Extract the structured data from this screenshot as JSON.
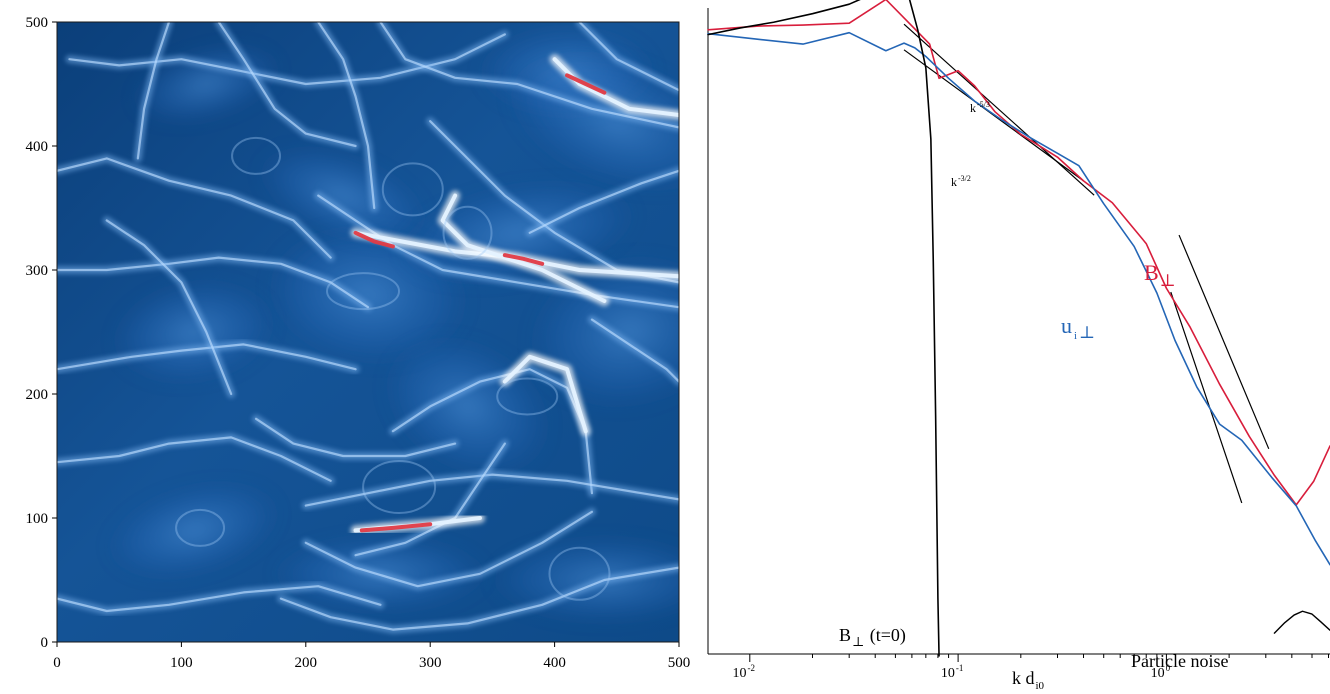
{
  "chart_data": [
    {
      "type": "heatmap",
      "xlim": [
        0,
        500
      ],
      "ylim": [
        0,
        500
      ],
      "x_ticks": [
        0,
        100,
        200,
        300,
        400,
        500
      ],
      "y_ticks": [
        0,
        100,
        200,
        300,
        400,
        500
      ],
      "x_tick_labels": [
        "0",
        "100",
        "200",
        "300",
        "400",
        "500"
      ],
      "y_tick_labels": [
        "0",
        "100",
        "200",
        "300",
        "400",
        "500"
      ],
      "colormap": {
        "low": "#0b3f7a",
        "mid": "#3b7fd0",
        "high": "#ffffff",
        "peak": "#e03a44"
      },
      "highlighted_features": [
        {
          "kind": "current-sheet-arc",
          "x": [
            240,
            320,
            370,
            420,
            500
          ],
          "y": [
            330,
            315,
            310,
            300,
            295
          ]
        },
        {
          "kind": "current-sheet-arc",
          "x": [
            320,
            310,
            330,
            390,
            440
          ],
          "y": [
            360,
            340,
            320,
            300,
            275
          ]
        },
        {
          "kind": "current-sheet-arc",
          "x": [
            400,
            420,
            460,
            500
          ],
          "y": [
            470,
            450,
            430,
            425
          ]
        },
        {
          "kind": "current-sheet-arc",
          "x": [
            240,
            260,
            300,
            340
          ],
          "y": [
            90,
            92,
            95,
            100
          ]
        },
        {
          "kind": "current-sheet-arc",
          "x": [
            360,
            380,
            410,
            425
          ],
          "y": [
            210,
            230,
            220,
            170
          ]
        }
      ]
    },
    {
      "type": "line",
      "x_scale": "log",
      "xlim": [
        0.0063,
        6.1
      ],
      "ylim": [
        -6,
        0.8
      ],
      "y_scale": "log",
      "xlabel": "k d",
      "xlabel_sub": "i0",
      "x_tick_values": [
        0.01,
        0.1,
        1
      ],
      "x_tick_labels": [
        {
          "base": "10",
          "exp": "-2"
        },
        {
          "base": "10",
          "exp": "-1"
        },
        {
          "base": "10",
          "exp": "0"
        }
      ],
      "series": [
        {
          "name": "B⊥",
          "label_base": "B",
          "label_symbol": "⊥",
          "color": "#d81e3c",
          "points": [
            [
              0.0063,
              0.57
            ],
            [
              0.011,
              0.61
            ],
            [
              0.018,
              0.62
            ],
            [
              0.03,
              0.64
            ],
            [
              0.045,
              0.89
            ],
            [
              0.062,
              0.58
            ],
            [
              0.073,
              0.42
            ],
            [
              0.081,
              0.06
            ],
            [
              0.1,
              0.14
            ],
            [
              0.12,
              -0.02
            ],
            [
              0.15,
              -0.29
            ],
            [
              0.2,
              -0.53
            ],
            [
              0.3,
              -0.77
            ],
            [
              0.4,
              -1.02
            ],
            [
              0.55,
              -1.25
            ],
            [
              0.8,
              -1.68
            ],
            [
              1,
              -2.15
            ],
            [
              1.3,
              -2.56
            ],
            [
              1.8,
              -3.16
            ],
            [
              2.5,
              -3.71
            ],
            [
              3.3,
              -4.12
            ],
            [
              4.2,
              -4.43
            ],
            [
              5.1,
              -4.18
            ],
            [
              6.1,
              -3.81
            ]
          ]
        },
        {
          "name": "ui⊥",
          "label_base": "u",
          "label_sub": "i",
          "label_symbol": "⊥",
          "color": "#2466b6",
          "points": [
            [
              0.0063,
              0.53
            ],
            [
              0.011,
              0.47
            ],
            [
              0.018,
              0.42
            ],
            [
              0.03,
              0.54
            ],
            [
              0.045,
              0.35
            ],
            [
              0.055,
              0.43
            ],
            [
              0.062,
              0.38
            ],
            [
              0.07,
              0.29
            ],
            [
              0.09,
              0.06
            ],
            [
              0.12,
              -0.18
            ],
            [
              0.16,
              -0.37
            ],
            [
              0.22,
              -0.56
            ],
            [
              0.3,
              -0.73
            ],
            [
              0.38,
              -0.86
            ],
            [
              0.5,
              -1.26
            ],
            [
              0.7,
              -1.71
            ],
            [
              0.9,
              -2.2
            ],
            [
              1.1,
              -2.7
            ],
            [
              1.4,
              -3.19
            ],
            [
              1.8,
              -3.58
            ],
            [
              2.3,
              -3.75
            ],
            [
              3.2,
              -4.14
            ],
            [
              4.2,
              -4.44
            ],
            [
              5.2,
              -4.81
            ],
            [
              6.1,
              -5.06
            ]
          ]
        },
        {
          "name": "B⊥ (t=0)",
          "label_base": "B",
          "label_symbol": "⊥",
          "label_suffix": " (t=0)",
          "color": "#000000",
          "points": [
            [
              0.0063,
              0.52
            ],
            [
              0.009,
              0.59
            ],
            [
              0.013,
              0.65
            ],
            [
              0.02,
              0.74
            ],
            [
              0.03,
              0.84
            ],
            [
              0.042,
              0.98
            ],
            [
              0.052,
              0.99
            ],
            [
              0.057,
              0.98
            ],
            [
              0.064,
              0.57
            ],
            [
              0.07,
              0.17
            ],
            [
              0.074,
              -0.58
            ],
            [
              0.076,
              -1.87
            ],
            [
              0.078,
              -3.49
            ],
            [
              0.08,
              -5.42
            ],
            [
              0.081,
              -6.02
            ]
          ]
        },
        {
          "name": "Particle noise",
          "label": "Particle noise",
          "color": "#000000",
          "points": [
            [
              3.3,
              -5.78
            ],
            [
              3.7,
              -5.67
            ],
            [
              4.1,
              -5.59
            ],
            [
              4.5,
              -5.55
            ],
            [
              5,
              -5.58
            ],
            [
              5.5,
              -5.66
            ],
            [
              6.1,
              -5.75
            ]
          ]
        }
      ],
      "reference_lines": [
        {
          "label": "k^-5/3",
          "label_base": "k",
          "label_exp": "-5/3",
          "x": [
            0.055,
            0.45
          ],
          "y": [
            0.63,
            -1.17
          ]
        },
        {
          "label": "k^-3/2",
          "label_base": "k",
          "label_exp": "-3/2",
          "x": [
            0.055,
            0.4
          ],
          "y": [
            0.36,
            -1.02
          ]
        },
        {
          "label": "",
          "x": [
            1.15,
            3.1
          ],
          "y": [
            -1.59,
            -3.84
          ]
        },
        {
          "label": "",
          "x": [
            1.05,
            2.3
          ],
          "y": [
            -2.19,
            -4.41
          ]
        }
      ],
      "frame": {
        "left_axis": true,
        "bottom_axis": true,
        "top_axis": false,
        "right_axis": false
      }
    }
  ]
}
